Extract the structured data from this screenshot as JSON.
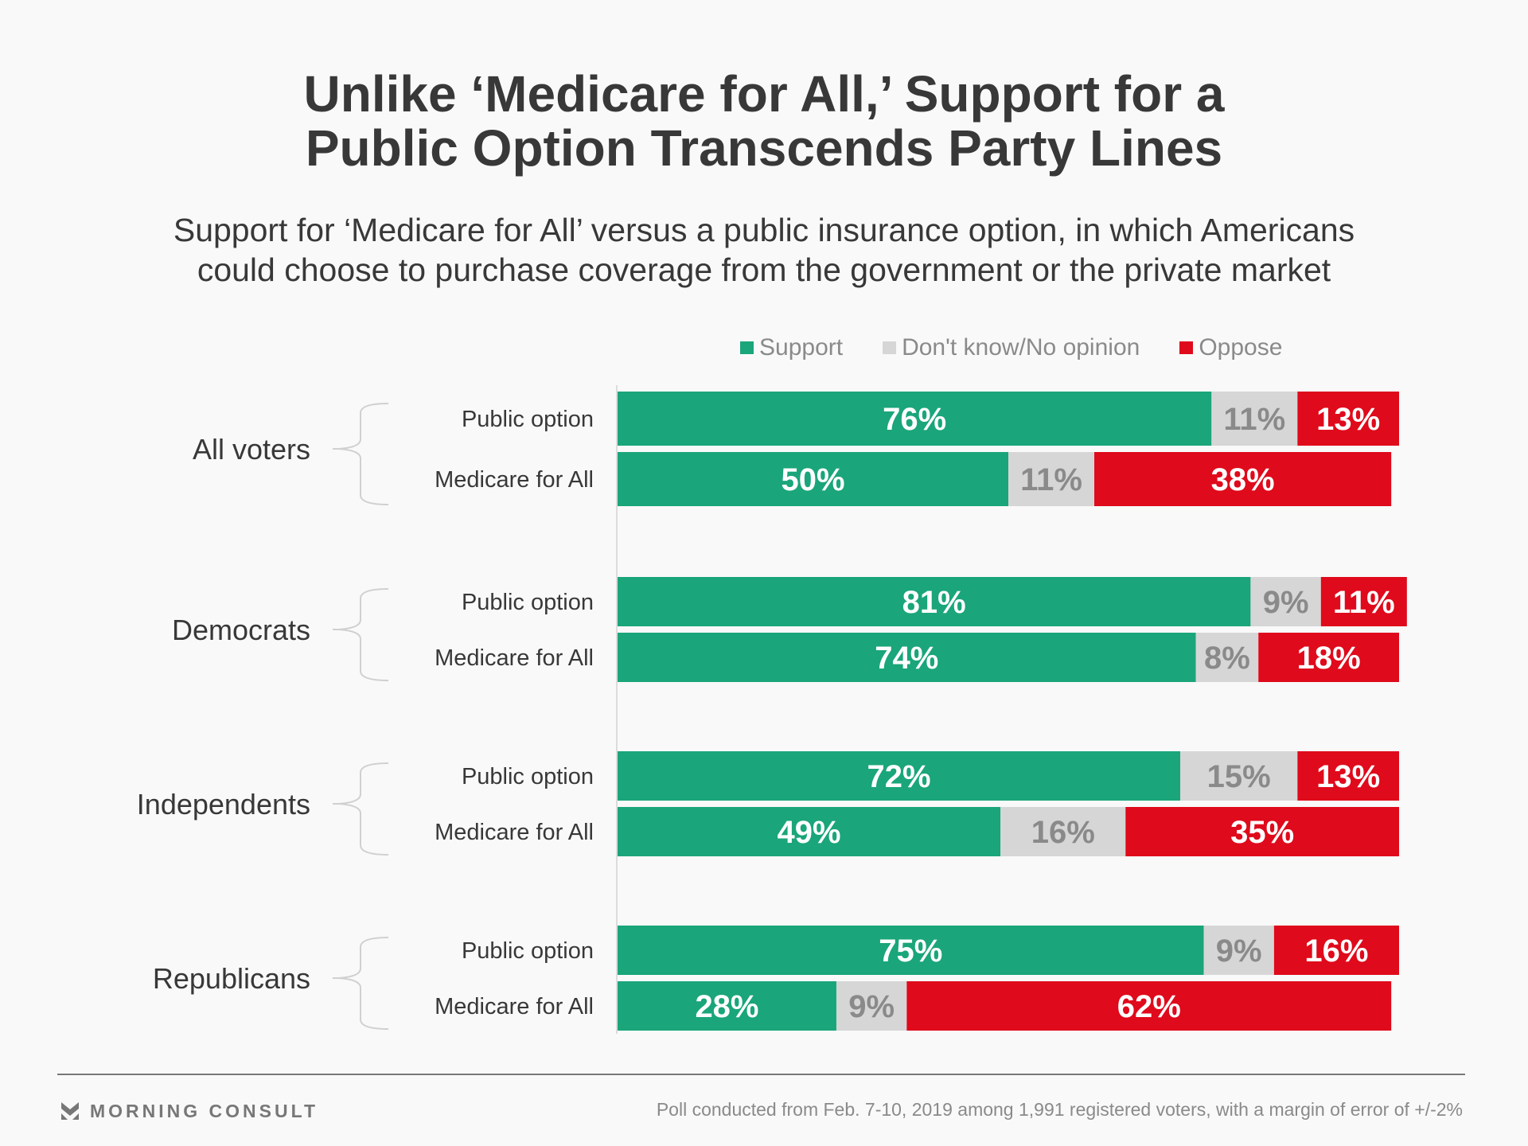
{
  "title_lines": [
    "Unlike ‘Medicare for All,’ Support for a",
    "Public Option Transcends Party Lines"
  ],
  "subtitle_lines": [
    "Support for ‘Medicare for All’ versus a public insurance option, in which Americans",
    "could choose to purchase coverage from the government or the private market"
  ],
  "legend": [
    {
      "label": "Support",
      "color": "#1aa57a"
    },
    {
      "label": "Don't know/No opinion",
      "color": "#d6d6d6"
    },
    {
      "label": "Oppose",
      "color": "#df0a1b"
    }
  ],
  "footer": {
    "brand": "MORNING CONSULT",
    "brand_icon": "morning-consult-logo-icon",
    "note": "Poll conducted from Feb. 7-10, 2019 among 1,991 registered voters, with a margin of error of +/-2%"
  },
  "chart_data": {
    "type": "bar",
    "orientation": "horizontal",
    "stacked": true,
    "title": "Unlike ‘Medicare for All,’ Support for a Public Option Transcends Party Lines",
    "subtitle": "Support for ‘Medicare for All’ versus a public insurance option, in which Americans could choose to purchase coverage from the government or the private market",
    "unit": "%",
    "xlim": [
      0,
      100
    ],
    "legend_position": "top-right",
    "series": [
      {
        "name": "Support",
        "color": "#1aa57a",
        "label_color": "#ffffff"
      },
      {
        "name": "Don't know/No opinion",
        "color": "#d6d6d6",
        "label_color": "#8a8a8a"
      },
      {
        "name": "Oppose",
        "color": "#df0a1b",
        "label_color": "#ffffff"
      }
    ],
    "groups": [
      {
        "name": "All voters",
        "bars": [
          {
            "label": "Public option",
            "values": [
              76,
              11,
              13
            ]
          },
          {
            "label": "Medicare for All",
            "values": [
              50,
              11,
              38
            ]
          }
        ]
      },
      {
        "name": "Democrats",
        "bars": [
          {
            "label": "Public option",
            "values": [
              81,
              9,
              11
            ]
          },
          {
            "label": "Medicare for All",
            "values": [
              74,
              8,
              18
            ]
          }
        ]
      },
      {
        "name": "Independents",
        "bars": [
          {
            "label": "Public option",
            "values": [
              72,
              15,
              13
            ]
          },
          {
            "label": "Medicare for All",
            "values": [
              49,
              16,
              35
            ]
          }
        ]
      },
      {
        "name": "Republicans",
        "bars": [
          {
            "label": "Public option",
            "values": [
              75,
              9,
              16
            ]
          },
          {
            "label": "Medicare for All",
            "values": [
              28,
              9,
              62
            ]
          }
        ]
      }
    ]
  }
}
